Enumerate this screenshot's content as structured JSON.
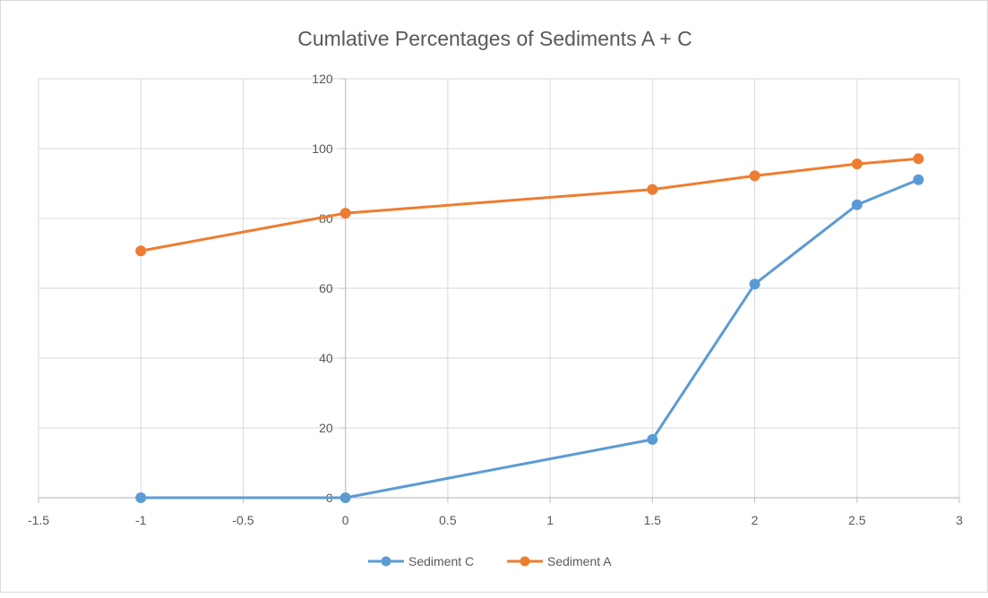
{
  "chart_data": {
    "type": "scatter",
    "title": "Cumlative Percentages of Sediments A + C",
    "xlabel": "",
    "ylabel": "",
    "xlim": [
      -1.5,
      3
    ],
    "ylim": [
      0,
      120
    ],
    "x_ticks": [
      "-1.5",
      "-1",
      "-0.5",
      "0",
      "0.5",
      "1",
      "1.5",
      "2",
      "2.5",
      "3"
    ],
    "y_ticks": [
      "0",
      "20",
      "40",
      "60",
      "80",
      "100",
      "120"
    ],
    "grid": true,
    "legend_position": "bottom",
    "series": [
      {
        "name": "Sediment C",
        "color": "#5b9bd5",
        "x": [
          -1,
          0,
          1.5,
          2,
          2.5,
          2.8
        ],
        "y": [
          0,
          0,
          16.7,
          61.2,
          83.9,
          91.1
        ]
      },
      {
        "name": "Sediment A",
        "color": "#ed7d31",
        "x": [
          -1,
          0,
          1.5,
          2,
          2.5,
          2.8
        ],
        "y": [
          70.7,
          81.5,
          88.3,
          92.2,
          95.6,
          97.1
        ]
      }
    ]
  }
}
